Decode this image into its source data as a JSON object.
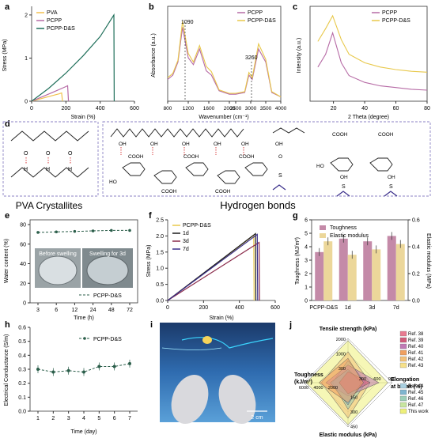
{
  "colors": {
    "pva": "#f2c14e",
    "pcpp": "#b66aa5",
    "pcpp_ds": "#1f6f5a",
    "yellow": "#e8c84a",
    "curve_1d": "#1a1a1a",
    "curve_3d": "#8a2a4a",
    "curve_7d": "#3a2f8a",
    "bar_toughness": "#c48aa8",
    "bar_elastic": "#ecd79a",
    "hbond_red": "#d94040",
    "green_dash": "#2b5e4a",
    "photo_blue": "#2a62a8"
  },
  "panels": {
    "a": {
      "letter": "a",
      "xlabel": "Strain (%)",
      "ylabel": "Stress (MPa)",
      "xticks": [
        "0",
        "200",
        "400",
        "600"
      ],
      "yticks": [
        "0",
        "1",
        "2"
      ],
      "legend": [
        "PVA",
        "PCPP",
        "PCPP-D&S"
      ]
    },
    "b": {
      "letter": "b",
      "xlabel": "Wavenumber (cm⁻¹)",
      "ylabel": "Absorbance (a.u.)",
      "xticks": [
        "800",
        "1200",
        "1600",
        "2000",
        "2500",
        "3000",
        "3500",
        "4000"
      ],
      "annot1": "1090",
      "annot2": "3260",
      "legend": [
        "PCPP",
        "PCPP-D&S"
      ]
    },
    "c": {
      "letter": "c",
      "xlabel": "2 Theta (degree)",
      "ylabel": "Intensity (a.u.)",
      "xticks": [
        "20",
        "40",
        "60",
        "80"
      ],
      "legend": [
        "PCPP",
        "PCPP-D&S"
      ]
    },
    "d": {
      "letter": "d",
      "label_left": "PVA Crystallites",
      "label_right": "Hydrogen bonds",
      "groups": {
        "cooh": "COOH",
        "oh": "OH",
        "ho": "HO",
        "o": "O",
        "h": "H",
        "s": "S"
      }
    },
    "e": {
      "letter": "e",
      "xlabel": "Time (h)",
      "ylabel": "Water content (%)",
      "xticks": [
        "3",
        "6",
        "12",
        "24",
        "48",
        "72"
      ],
      "yticks": [
        "0",
        "20",
        "40",
        "60",
        "80"
      ],
      "legend": "PCPP-D&S",
      "photo_left": "Before swelling",
      "photo_right": "Swelling for 3d"
    },
    "f": {
      "letter": "f",
      "xlabel": "Strain (%)",
      "ylabel": "Stress (MPa)",
      "xticks": [
        "0",
        "200",
        "400",
        "600"
      ],
      "yticks": [
        "0.0",
        "0.5",
        "1.0",
        "1.5",
        "2.0",
        "2.5"
      ],
      "legend": [
        "PCPP-D&S",
        "1d",
        "3d",
        "7d"
      ]
    },
    "g": {
      "letter": "g",
      "ylabel_left": "Toughness (MJ/m³)",
      "ylabel_right": "Elastic modulus (MPa)",
      "categories": [
        "PCPP-D&S",
        "1d",
        "3d",
        "7d"
      ],
      "yticks_left": [
        "0",
        "1",
        "2",
        "3",
        "4",
        "5",
        "6"
      ],
      "yticks_right": [
        "0.0",
        "0.2",
        "0.4",
        "0.6"
      ],
      "legend": [
        "Toughness",
        "Elastic modulus"
      ]
    },
    "h": {
      "letter": "h",
      "xlabel": "Time (day)",
      "ylabel": "Electrical Conductance (S/m)",
      "xticks": [
        "1",
        "2",
        "3",
        "4",
        "5",
        "6",
        "7"
      ],
      "yticks": [
        "0.0",
        "0.1",
        "0.2",
        "0.3",
        "0.4",
        "0.5",
        "0.6"
      ],
      "legend": "PCPP-D&S"
    },
    "i": {
      "letter": "i",
      "scale": "2 cm"
    },
    "j": {
      "letter": "j",
      "axis_top": "Tensile strength (kPa)",
      "axis_left": "Toughness",
      "axis_left_unit": "(kJ/m³)",
      "axis_right": "Elongation",
      "axis_right_unit": "at break (%)",
      "axis_bottom": "Elastic modulus (kPa)",
      "ticks_top": [
        "2000",
        "1000",
        "300"
      ],
      "ticks_left": [
        "6000",
        "4000",
        "2000"
      ],
      "ticks_right": [
        "300",
        "600",
        "900"
      ],
      "ticks_bottom": [
        "150",
        "300",
        "450"
      ],
      "legend_refs": [
        "Ref. 38",
        "Ref. 39",
        "Ref. 40",
        "Ref. 41",
        "Ref. 42",
        "Ref. 43",
        "Ref. 44",
        "Ref. 45",
        "Ref. 46",
        "Ref. 47",
        "This work"
      ],
      "legend_colors": [
        "#e87a90",
        "#d15a7a",
        "#c07ab5",
        "#f0a060",
        "#f3c27a",
        "#f6e08a",
        "#a8cfe0",
        "#7fb5d0",
        "#9ccfb8",
        "#c8e6a0",
        "#eef07a"
      ]
    }
  },
  "chart_data": [
    {
      "panel": "a",
      "type": "line",
      "xlabel": "Strain (%)",
      "ylabel": "Stress (MPa)",
      "xlim": [
        0,
        600
      ],
      "ylim": [
        0,
        2.2
      ],
      "series": [
        {
          "name": "PVA",
          "x": [
            0,
            120,
            160,
            175,
            180
          ],
          "y": [
            0,
            0.13,
            0.17,
            0.19,
            0
          ]
        },
        {
          "name": "PCPP",
          "x": [
            0,
            120,
            200,
            210,
            215
          ],
          "y": [
            0,
            0.2,
            0.34,
            0.36,
            0
          ]
        },
        {
          "name": "PCPP-D&S",
          "x": [
            0,
            100,
            200,
            300,
            400,
            480,
            482
          ],
          "y": [
            0,
            0.3,
            0.65,
            1.05,
            1.5,
            2.0,
            0
          ]
        }
      ]
    },
    {
      "panel": "b",
      "type": "line",
      "xlabel": "Wavenumber (cm⁻¹)",
      "ylabel": "Absorbance (a.u.)",
      "series": [
        {
          "name": "PCPP",
          "x": [
            800,
            900,
            1000,
            1090,
            1200,
            1300,
            1420,
            1550,
            1650,
            1800,
            2000,
            2500,
            2800,
            2940,
            3050,
            3260,
            3500,
            3700,
            4000
          ],
          "y": [
            0.25,
            0.3,
            0.45,
            0.85,
            0.5,
            0.42,
            0.6,
            0.35,
            0.3,
            0.12,
            0.08,
            0.08,
            0.1,
            0.3,
            0.25,
            0.6,
            0.45,
            0.1,
            0.05
          ]
        },
        {
          "name": "PCPP-D&S",
          "x": [
            800,
            900,
            1000,
            1090,
            1200,
            1300,
            1420,
            1550,
            1650,
            1800,
            2000,
            2500,
            2800,
            2940,
            3050,
            3260,
            3500,
            3700,
            4000
          ],
          "y": [
            0.27,
            0.32,
            0.47,
            0.92,
            0.55,
            0.45,
            0.64,
            0.4,
            0.34,
            0.13,
            0.09,
            0.09,
            0.11,
            0.33,
            0.27,
            0.66,
            0.48,
            0.11,
            0.05
          ]
        }
      ]
    },
    {
      "panel": "c",
      "type": "line",
      "xlabel": "2 Theta (degree)",
      "ylabel": "Intensity (a.u.)",
      "series": [
        {
          "name": "PCPP",
          "x": [
            10,
            15,
            19.5,
            25,
            30,
            40,
            50,
            60,
            70,
            80
          ],
          "y": [
            0.4,
            0.55,
            0.8,
            0.45,
            0.3,
            0.22,
            0.18,
            0.16,
            0.14,
            0.13
          ]
        },
        {
          "name": "PCPP-D&S",
          "x": [
            10,
            15,
            19.5,
            25,
            30,
            40,
            50,
            60,
            70,
            80
          ],
          "y": [
            0.7,
            0.85,
            1.0,
            0.72,
            0.55,
            0.45,
            0.4,
            0.37,
            0.35,
            0.34
          ]
        }
      ]
    },
    {
      "panel": "e",
      "type": "line",
      "xlabel": "Time (h)",
      "ylabel": "Water content (%)",
      "categories": [
        "3",
        "6",
        "12",
        "24",
        "48",
        "72"
      ],
      "ylim": [
        0,
        80
      ],
      "series": [
        {
          "name": "PCPP-D&S",
          "values": [
            72,
            72.5,
            73,
            73.5,
            74,
            74
          ]
        }
      ]
    },
    {
      "panel": "f",
      "type": "line",
      "xlabel": "Strain (%)",
      "ylabel": "Stress (MPa)",
      "xlim": [
        0,
        600
      ],
      "ylim": [
        0,
        2.5
      ],
      "series": [
        {
          "name": "PCPP-D&S",
          "x": [
            0,
            480,
            482
          ],
          "y": [
            0,
            2.02,
            0
          ]
        },
        {
          "name": "1d",
          "x": [
            0,
            490,
            492
          ],
          "y": [
            0,
            2.07,
            0
          ]
        },
        {
          "name": "3d",
          "x": [
            0,
            510,
            512
          ],
          "y": [
            0,
            1.8,
            0
          ]
        },
        {
          "name": "7d",
          "x": [
            0,
            500,
            502
          ],
          "y": [
            0,
            2.05,
            0
          ]
        }
      ]
    },
    {
      "panel": "g",
      "type": "bar",
      "categories": [
        "PCPP-D&S",
        "1d",
        "3d",
        "7d"
      ],
      "series": [
        {
          "name": "Toughness",
          "axis": "left",
          "values": [
            3.6,
            4.6,
            4.4,
            4.8
          ]
        },
        {
          "name": "Elastic modulus",
          "axis": "right",
          "values": [
            0.44,
            0.34,
            0.38,
            0.42
          ]
        }
      ],
      "ylim_left": [
        0,
        6
      ],
      "ylim_right": [
        0,
        0.6
      ]
    },
    {
      "panel": "h",
      "type": "line",
      "xlabel": "Time (day)",
      "ylabel": "Electrical Conductance (S/m)",
      "x": [
        1,
        2,
        3,
        4,
        5,
        6,
        7
      ],
      "ylim": [
        0,
        0.6
      ],
      "series": [
        {
          "name": "PCPP-D&S",
          "values": [
            0.3,
            0.28,
            0.29,
            0.28,
            0.32,
            0.32,
            0.34
          ]
        }
      ]
    }
  ]
}
